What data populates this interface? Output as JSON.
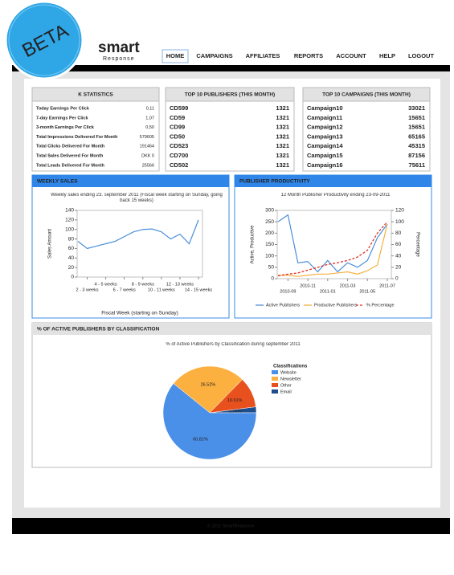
{
  "badge": "BETA",
  "logo": {
    "brand": "smart",
    "tagline": "Response"
  },
  "nav": [
    "HOME",
    "CAMPAIGNS",
    "AFFILIATES",
    "REPORTS",
    "ACCOUNT",
    "HELP",
    "LOGOUT"
  ],
  "stats": {
    "title": "K STATISTICS",
    "rows": [
      [
        "Today Earnings Per Click",
        "0,11"
      ],
      [
        "7-day Earnings Per Click",
        "1,07"
      ],
      [
        "3-month Earnings Per Click",
        "0,50"
      ],
      [
        "Total Impressions Delivered For Month",
        "579605"
      ],
      [
        "Total Clicks Delivered For Month",
        "191464"
      ],
      [
        "Total Sales Delivered For Month",
        "DKK 0"
      ],
      [
        "Total Leads Delivered For Month",
        "25566"
      ]
    ]
  },
  "publishers": {
    "title": "TOP 10 PUBLISHERS (THIS MONTH)",
    "rows": [
      [
        "CD599",
        1321
      ],
      [
        "CD59",
        1321
      ],
      [
        "CD99",
        1321
      ],
      [
        "CD50",
        1321
      ],
      [
        "CD523",
        1321
      ],
      [
        "CD700",
        1321
      ],
      [
        "CD502",
        1321
      ]
    ]
  },
  "campaigns": {
    "title": "TOP 10 CAMPAIGNS (THIS MONTH)",
    "rows": [
      [
        "Campaign10",
        33021
      ],
      [
        "Campaign11",
        15651
      ],
      [
        "Campaign12",
        15651
      ],
      [
        "Campaign13",
        65165
      ],
      [
        "Campaign14",
        45315
      ],
      [
        "Campaign15",
        87156
      ],
      [
        "Campaign16",
        75611
      ]
    ]
  },
  "chart_data": [
    {
      "type": "line",
      "panel_title": "WEEKLY SALES",
      "title": "Weekly sales ending 23. september 2011 (Fiscal week starting on Sunday, going back 15 weeks)",
      "x_label": "Fiscal Week (starting on Sunday)",
      "y_label": "Sales Amount",
      "categories": [
        null,
        "2 - 3 weeks",
        null,
        "4 - 5 weeks",
        null,
        "6 - 7 weeks",
        null,
        "8 - 9 weeks",
        null,
        "10 - 11 weeks",
        null,
        "12 - 13 weeks",
        null,
        "14 - 15 weeks"
      ],
      "series": [
        {
          "color": "#4a8fdb",
          "values": [
            75,
            60,
            65,
            70,
            75,
            85,
            95,
            100,
            101,
            95,
            80,
            90,
            70,
            120
          ]
        }
      ],
      "ylim": [
        0,
        140
      ],
      "yticks": [
        0,
        20,
        40,
        60,
        80,
        100,
        120,
        140
      ]
    },
    {
      "type": "line",
      "panel_title": "PUBLISHER PRODUCTIVITY",
      "title": "12 Month Publisher Productivity ending 23-09-2011",
      "y_label": "Active, Productive",
      "y2_label": "Percentage",
      "categories": [
        null,
        "2010-09",
        null,
        "2010-11",
        null,
        "2011-01",
        null,
        "2011-03",
        null,
        "2011-05",
        null,
        "2011-07"
      ],
      "series": [
        {
          "name": "Active Publishers",
          "color": "#4a8fdb",
          "values": [
            250,
            280,
            70,
            75,
            30,
            80,
            30,
            70,
            50,
            80,
            180,
            240
          ]
        },
        {
          "name": "Productive Publishers",
          "color": "#f5b041",
          "values": [
            15,
            15,
            10,
            15,
            20,
            20,
            25,
            30,
            20,
            35,
            60,
            240
          ]
        },
        {
          "name": "% Percentage",
          "color": "#e03020",
          "dashed": true,
          "axis": "y2",
          "values": [
            5,
            8,
            10,
            15,
            20,
            25,
            28,
            32,
            38,
            50,
            80,
            100
          ]
        }
      ],
      "ylim": [
        0,
        300
      ],
      "yticks": [
        0,
        50,
        100,
        150,
        200,
        250,
        300
      ],
      "y2lim": [
        0,
        120
      ],
      "y2ticks": [
        0,
        20,
        40,
        60,
        80,
        100,
        120
      ],
      "legend": "bottom"
    },
    {
      "type": "pie",
      "panel_title": "% OF ACTIVE PUBLISHERS BY CLASSIFICATION",
      "title": "% of Active Publishers by Classification during september 2011",
      "legend_title": "Classifications",
      "categories": [
        "Website",
        "Newsletter",
        "Other",
        "Email"
      ],
      "values": [
        60.81,
        26.52,
        10.61,
        2.06
      ],
      "value_labels": [
        "60.81%",
        "26.52%",
        "10.61%",
        "2.06%"
      ],
      "colors": [
        "#4a8fe8",
        "#fbb040",
        "#e8501e",
        "#1f4e8c"
      ],
      "legend": "right"
    }
  ],
  "footer": "© 2011 SmartResponse"
}
